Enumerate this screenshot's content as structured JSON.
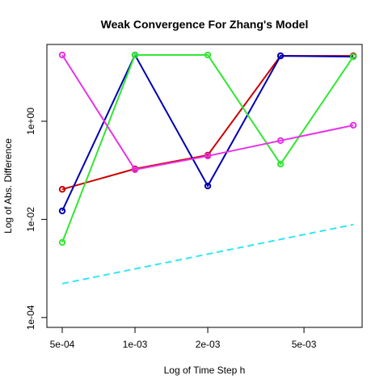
{
  "chart_data": {
    "type": "line",
    "title": "Weak Convergence For Zhang's Model",
    "x_label": "Log of Time Step h",
    "y_label": "Log of Abs. Difference",
    "x_scale": "log",
    "y_scale": "log",
    "x": [
      0.0005,
      0.001,
      0.002,
      0.004,
      0.008
    ],
    "series": [
      {
        "color": "#cc0000",
        "values": [
          0.041,
          0.107,
          0.204,
          21.5,
          21.5
        ],
        "markers": true,
        "line_style": "solid"
      },
      {
        "color": "#0000b0",
        "values": [
          0.0149,
          22.4,
          0.048,
          21.5,
          20.7
        ],
        "markers": true,
        "line_style": "solid"
      },
      {
        "color": "#33e633",
        "values": [
          0.0034,
          22.4,
          22.4,
          0.134,
          20.7
        ],
        "markers": true,
        "line_style": "solid"
      },
      {
        "color": "#e633e6",
        "values": [
          22.4,
          0.103,
          0.196,
          0.403,
          0.828
        ],
        "markers": true,
        "line_style": "solid"
      },
      {
        "color": "#33e6f0",
        "values": [
          0.00049,
          0.00098,
          0.00196,
          0.00392,
          0.00784
        ],
        "markers": false,
        "line_style": "dashed"
      }
    ],
    "xlim": [
      0.000432,
      0.0087
    ],
    "ylim": [
      6.3e-05,
      36.7
    ],
    "xticks": [
      {
        "value": 0.0005,
        "label": "5e-04"
      },
      {
        "value": 0.001,
        "label": "1e-03"
      },
      {
        "value": 0.002,
        "label": "2e-03"
      },
      {
        "value": 0.005,
        "label": "5e-03"
      }
    ],
    "yticks": [
      {
        "value": 0.0001,
        "label": "1e-04"
      },
      {
        "value": 0.01,
        "label": "1e-02"
      },
      {
        "value": 1,
        "label": "1e+00"
      }
    ]
  }
}
